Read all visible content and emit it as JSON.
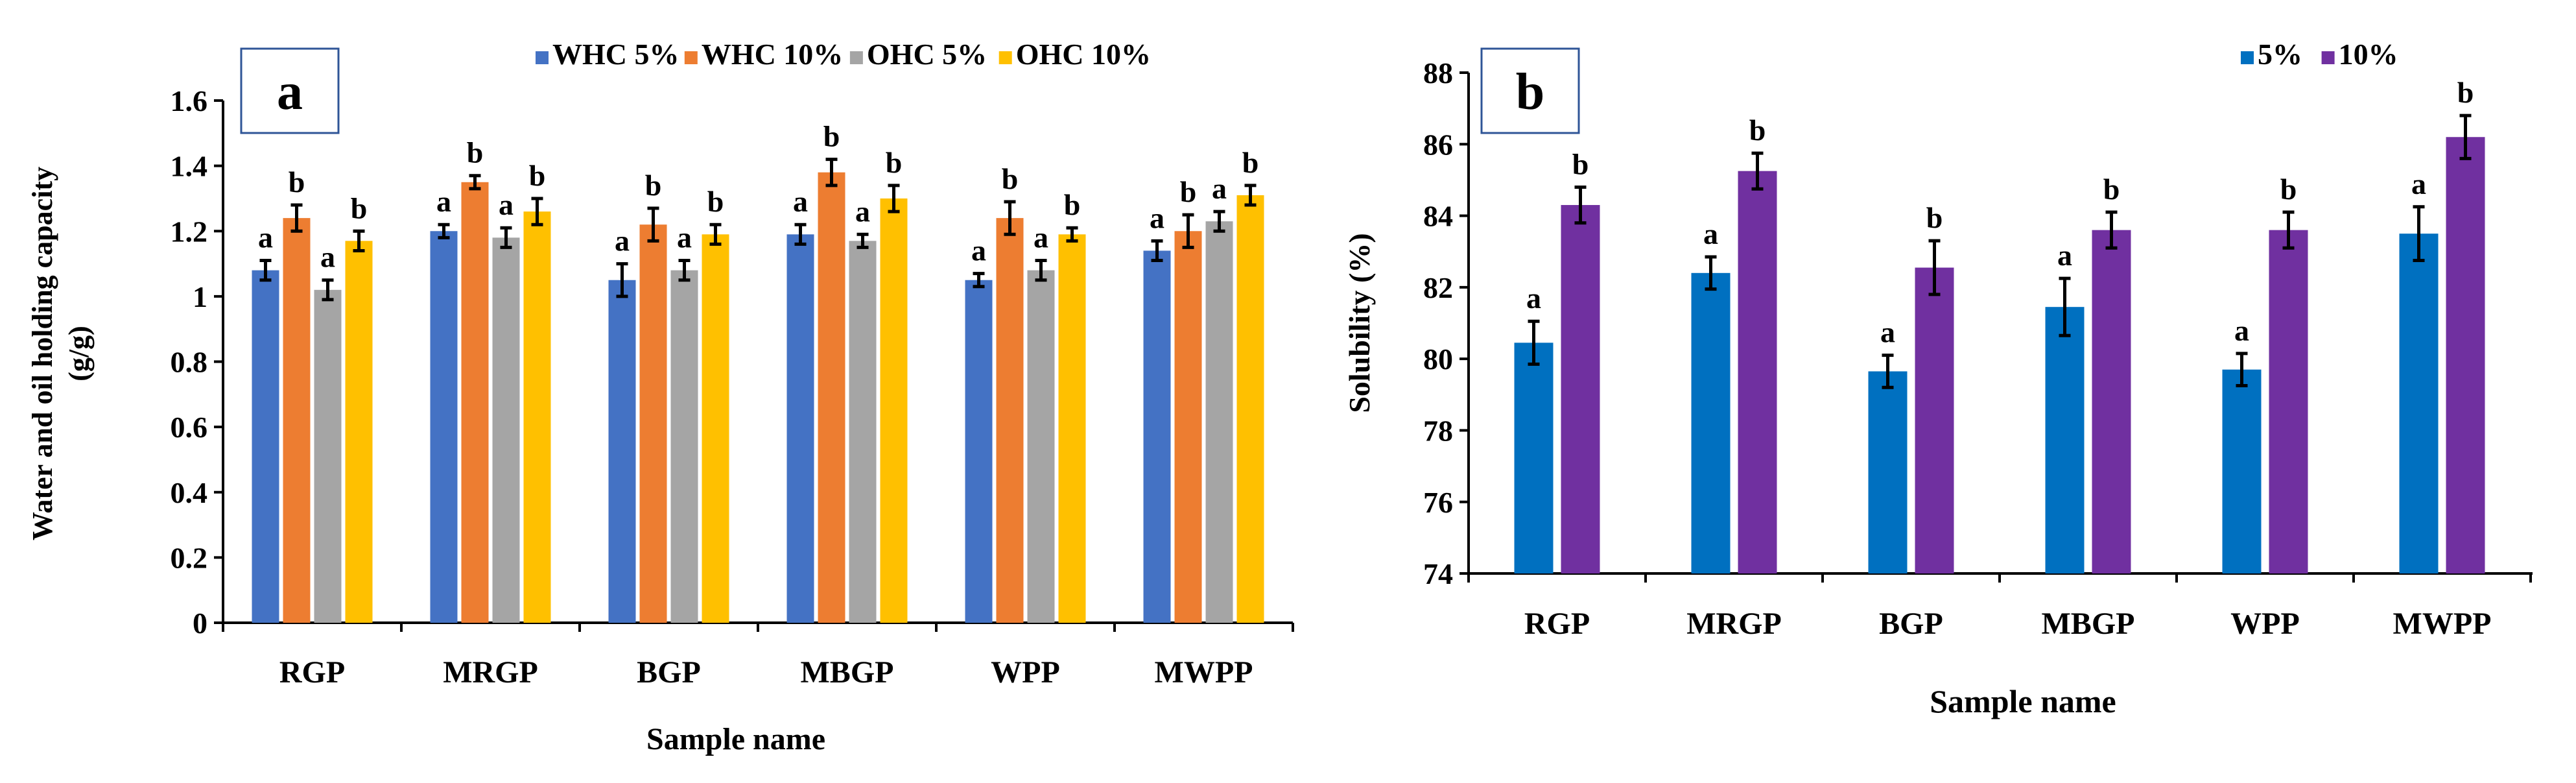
{
  "colors": {
    "whc5": "#4472C4",
    "whc10": "#ED7D31",
    "ohc5": "#A5A5A5",
    "ohc10": "#FFC000",
    "sol5": "#0070C0",
    "sol10": "#7030A0",
    "panel_box": "#2F5597"
  },
  "chart_data": [
    {
      "panel": "a",
      "type": "bar",
      "title": "",
      "xlabel": "Sample name",
      "ylabel": "Water and oil holding capacity (g/g)",
      "ylabel_lines": [
        "Water and oil holding capacity",
        "(g/g)"
      ],
      "ylim": [
        0,
        1.6
      ],
      "yticks": [
        0,
        0.2,
        0.4,
        0.6,
        0.8,
        1,
        1.2,
        1.4,
        1.6
      ],
      "ytick_labels": [
        "0",
        "0.2",
        "0.4",
        "0.6",
        "0.8",
        "1",
        "1.2",
        "1.4",
        "1.6"
      ],
      "grid": false,
      "legend_position": "top-right",
      "categories": [
        "RGP",
        "MRGP",
        "BGP",
        "MBGP",
        "WPP",
        "MWPP"
      ],
      "series": [
        {
          "name": "WHC 5%",
          "color_key": "whc5",
          "values": [
            1.08,
            1.2,
            1.05,
            1.19,
            1.05,
            1.14
          ],
          "errors": [
            0.03,
            0.02,
            0.05,
            0.03,
            0.02,
            0.03
          ],
          "letters": [
            "a",
            "a",
            "a",
            "a",
            "a",
            "a"
          ]
        },
        {
          "name": "WHC 10%",
          "color_key": "whc10",
          "values": [
            1.24,
            1.35,
            1.22,
            1.38,
            1.24,
            1.2
          ],
          "errors": [
            0.04,
            0.02,
            0.05,
            0.04,
            0.05,
            0.05
          ],
          "letters": [
            "b",
            "b",
            "b",
            "b",
            "b",
            "b"
          ]
        },
        {
          "name": "OHC 5%",
          "color_key": "ohc5",
          "values": [
            1.02,
            1.18,
            1.08,
            1.17,
            1.08,
            1.23
          ],
          "errors": [
            0.03,
            0.03,
            0.03,
            0.02,
            0.03,
            0.03
          ],
          "letters": [
            "a",
            "a",
            "a",
            "a",
            "a",
            "a"
          ]
        },
        {
          "name": "OHC 10%",
          "color_key": "ohc10",
          "values": [
            1.17,
            1.26,
            1.19,
            1.3,
            1.19,
            1.31
          ],
          "errors": [
            0.03,
            0.04,
            0.03,
            0.04,
            0.02,
            0.03
          ],
          "letters": [
            "b",
            "b",
            "b",
            "b",
            "b",
            "b"
          ]
        }
      ]
    },
    {
      "panel": "b",
      "type": "bar",
      "title": "",
      "xlabel": "Sample name",
      "ylabel": "Solubility (%)",
      "ylabel_lines": [
        "Solubility (%)"
      ],
      "ylim": [
        74,
        88
      ],
      "yticks": [
        74,
        76,
        78,
        80,
        82,
        84,
        86,
        88
      ],
      "ytick_labels": [
        "74",
        "76",
        "78",
        "80",
        "82",
        "84",
        "86",
        "88"
      ],
      "grid": false,
      "legend_position": "top-right",
      "categories": [
        "RGP",
        "MRGP",
        "BGP",
        "MBGP",
        "WPP",
        "MWPP"
      ],
      "series": [
        {
          "name": "5%",
          "color_key": "sol5",
          "values": [
            80.45,
            82.4,
            79.65,
            81.45,
            79.7,
            83.5
          ],
          "errors": [
            0.6,
            0.45,
            0.45,
            0.8,
            0.45,
            0.75
          ],
          "letters": [
            "a",
            "a",
            "a",
            "a",
            "a",
            "a"
          ]
        },
        {
          "name": "10%",
          "color_key": "sol10",
          "values": [
            84.3,
            85.25,
            82.55,
            83.6,
            83.6,
            86.2
          ],
          "errors": [
            0.5,
            0.5,
            0.75,
            0.5,
            0.5,
            0.6
          ],
          "letters": [
            "b",
            "b",
            "b",
            "b",
            "b",
            "b"
          ]
        }
      ]
    }
  ]
}
